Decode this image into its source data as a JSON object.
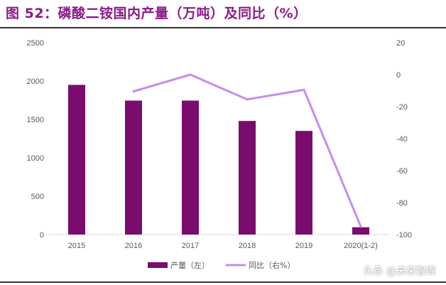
{
  "title": "图 52：磷酸二铵国内产量（万吨）及同比（%）",
  "watermark": "头条 @未来智库",
  "colors": {
    "bar": "#7a0c6e",
    "line": "#c58cf0",
    "title": "#8b1a87"
  },
  "chart_data": {
    "type": "bar",
    "categories": [
      "2015",
      "2016",
      "2017",
      "2018",
      "2019",
      "2020(1-2)"
    ],
    "series": [
      {
        "name": "产量（左）",
        "type": "bar",
        "axis": "left",
        "values": [
          1950,
          1745,
          1745,
          1480,
          1350,
          95
        ]
      },
      {
        "name": "同比（右%）",
        "type": "line",
        "axis": "right",
        "values": [
          null,
          -10.5,
          0,
          -15.5,
          -9.5,
          -95
        ]
      }
    ],
    "y_left": {
      "ticks": [
        "2500",
        "2000",
        "1500",
        "1000",
        "500",
        "0"
      ],
      "lim": [
        0,
        2500
      ]
    },
    "y_right": {
      "ticks": [
        "20",
        "0",
        "-20",
        "-40",
        "-60",
        "-80",
        "-100"
      ],
      "lim": [
        -100,
        20
      ]
    },
    "grid": false,
    "legend": "bottom"
  }
}
